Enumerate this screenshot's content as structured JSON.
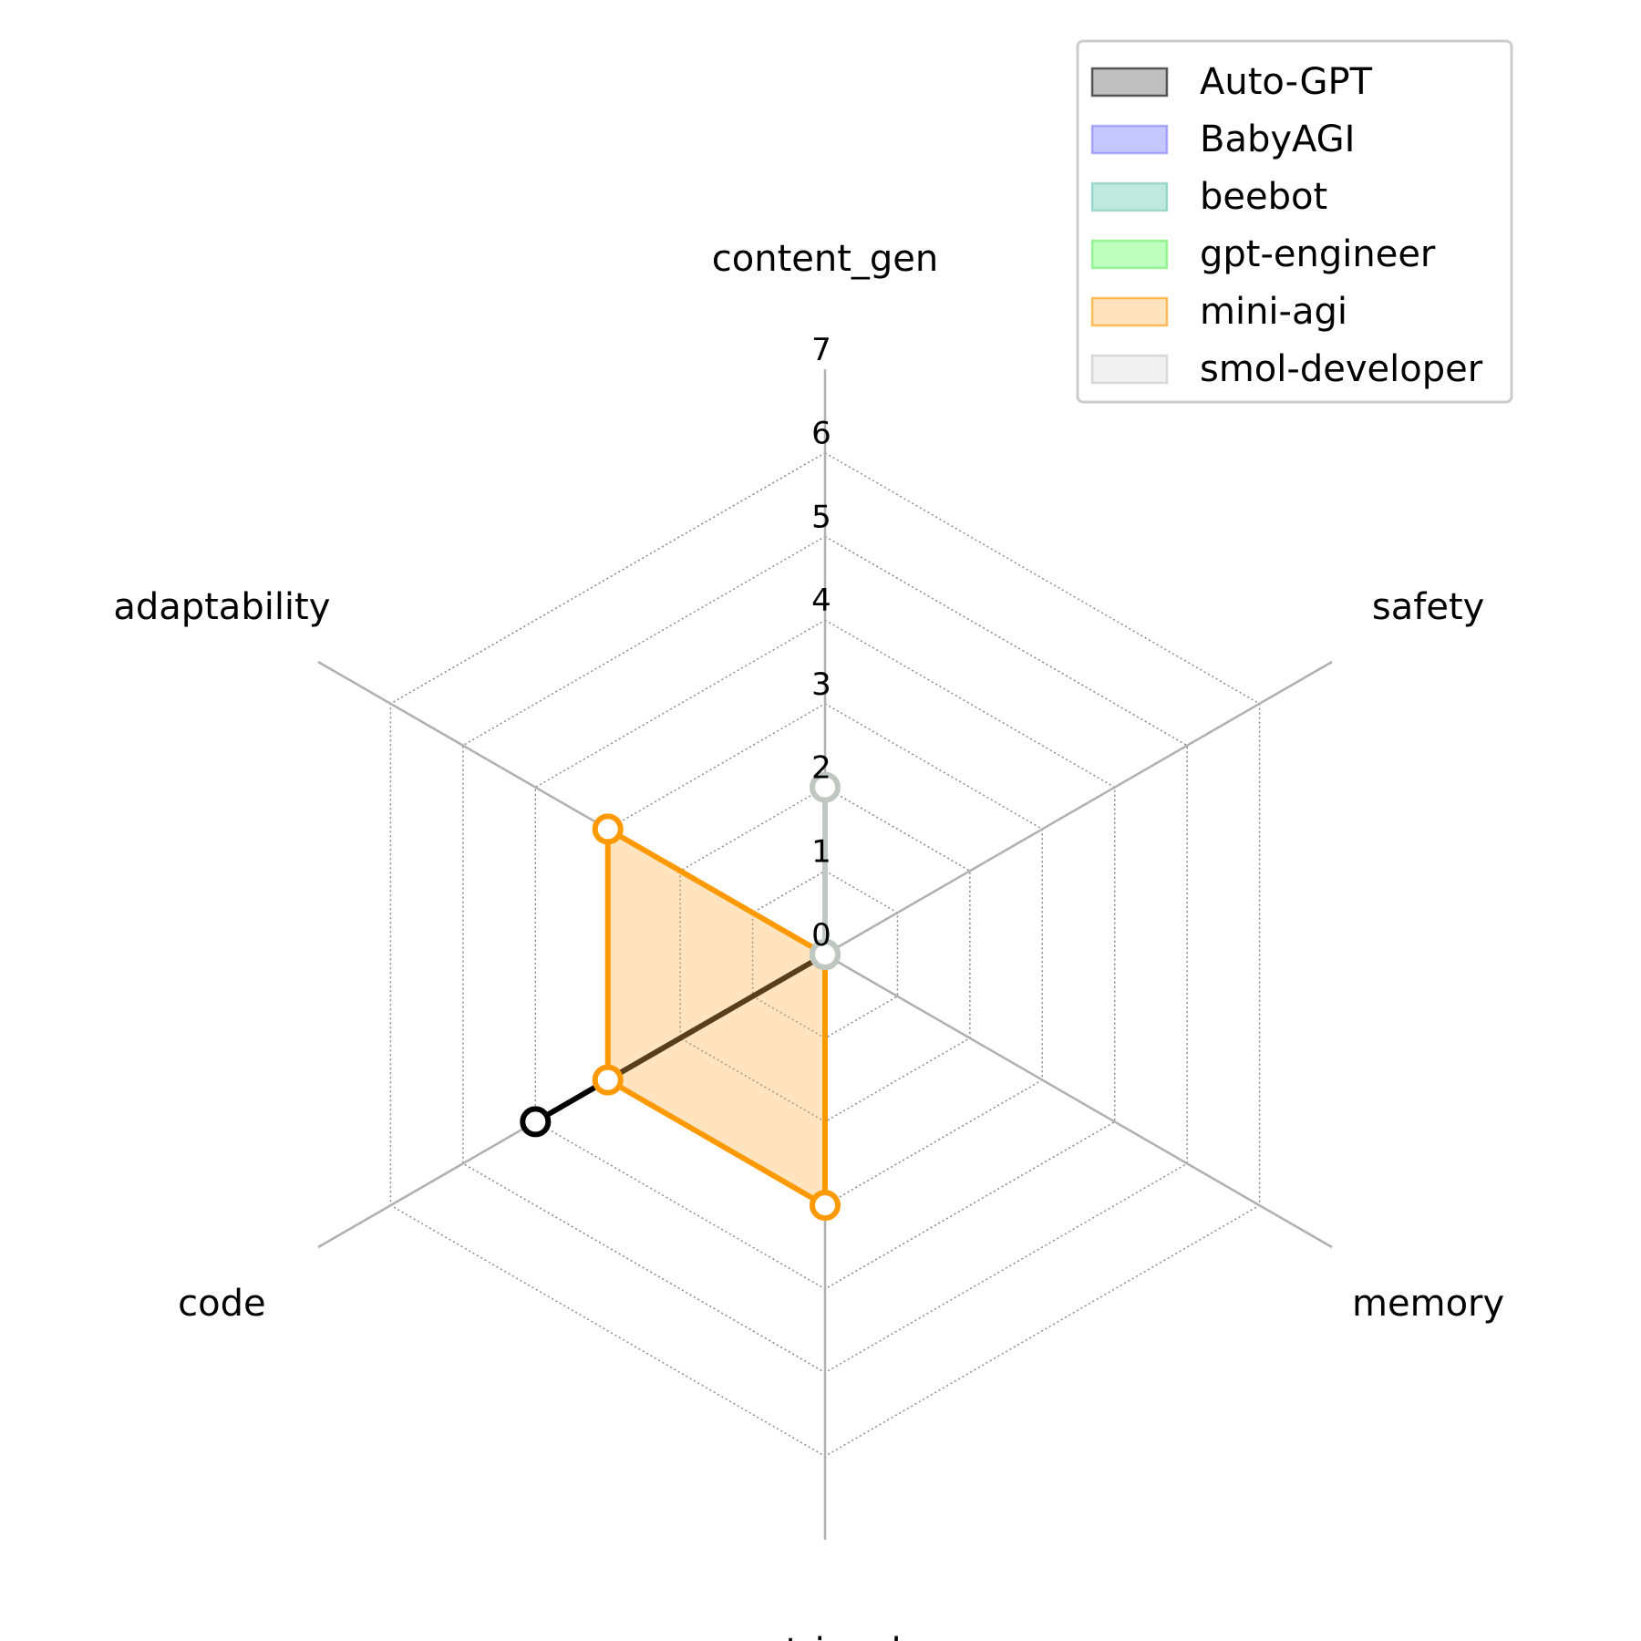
{
  "chart_data": {
    "type": "radar",
    "axes": [
      "content_gen",
      "safety",
      "memory",
      "retrieval",
      "code",
      "adaptability"
    ],
    "rlim": [
      0,
      7
    ],
    "rticks": [
      "0",
      "1",
      "2",
      "3",
      "4",
      "5",
      "6",
      "7"
    ],
    "grid": true,
    "legend_position": "top-right",
    "series": [
      {
        "name": "Auto-GPT",
        "values": [
          0,
          0,
          0,
          0,
          4,
          0
        ],
        "line": "#000000",
        "fill": "#808080",
        "fill_opacity": 0.5
      },
      {
        "name": "BabyAGI",
        "values": [
          0,
          0,
          0,
          0,
          0,
          0
        ],
        "line": "#7f7fff",
        "fill": "#8080ff",
        "fill_opacity": 0.45
      },
      {
        "name": "beebot",
        "values": [
          0,
          0,
          0,
          0,
          0,
          0
        ],
        "line": "#6fc7b0",
        "fill": "#80d4c0",
        "fill_opacity": 0.5
      },
      {
        "name": "gpt-engineer",
        "values": [
          0,
          0,
          0,
          0,
          0,
          0
        ],
        "line": "#66ee66",
        "fill": "#80ff80",
        "fill_opacity": 0.5
      },
      {
        "name": "mini-agi",
        "values": [
          0,
          0,
          0,
          3,
          3,
          3
        ],
        "line": "#ff9900",
        "fill": "#ffb347",
        "fill_opacity": 0.35
      },
      {
        "name": "smol-developer",
        "values": [
          2,
          0,
          0,
          0,
          0,
          0
        ],
        "line": "#bfc8c0",
        "fill": "#e0e0e0",
        "fill_opacity": 0.45
      }
    ]
  }
}
